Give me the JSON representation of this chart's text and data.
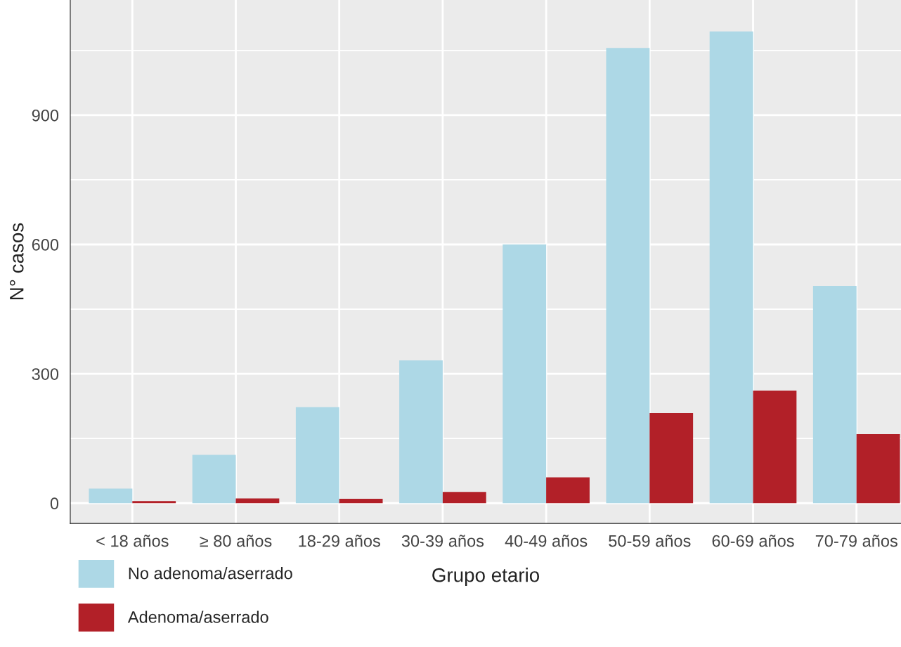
{
  "chart_data": {
    "type": "bar",
    "xlabel": "Grupo etario",
    "ylabel": "N° casos",
    "categories": [
      "< 18 años",
      "≥ 80 años",
      "18-29 años",
      "30-39 años",
      "40-49 años",
      "50-59 años",
      "60-69 años",
      "70-79 años"
    ],
    "series": [
      {
        "name": "No adenoma/aserrado",
        "color": "#add8e6",
        "values": [
          34,
          112,
          223,
          331,
          600,
          1056,
          1094,
          504
        ]
      },
      {
        "name": "Adenoma/aserrado",
        "color": "#b22028",
        "values": [
          5,
          11,
          10,
          26,
          60,
          209,
          261,
          160
        ]
      }
    ],
    "ylim": [
      -47,
      1167
    ],
    "yticks": [
      0,
      300,
      600,
      900
    ],
    "grid": true,
    "legend": "bottom left"
  }
}
